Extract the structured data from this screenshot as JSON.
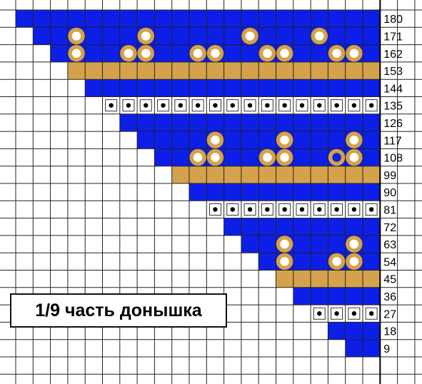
{
  "caption": "1/9 часть донышка",
  "row_labels": [
    "180",
    "171",
    "162",
    "153",
    "144",
    "135",
    "126",
    "117",
    "108",
    "99",
    "90",
    "81",
    "72",
    "63",
    "54",
    "45",
    "36",
    "27",
    "18",
    "9"
  ],
  "colors": {
    "blue": "#0d1fe6",
    "gold": "#d4a24c",
    "bead_white": "#ffffff",
    "dot": "#000000",
    "grid": "#222222",
    "blue_dot": "#0d1fe6"
  },
  "pattern": {
    "legend": {
      "B": "blue-bead",
      "G": "gold-bead",
      "C": "cluster-bead-white-with-gold-ring",
      "K": "blue-bead-in-gold-ring",
      "D": "white-bead-with-black-dot",
      "_": "empty"
    },
    "rows": [
      "BBBBBBBBBBBBBBBBBBBBB",
      "_BBCBBBCBBBBBCBBBCBBB",
      "__BCBBCCBBCCBBCCBBCCB",
      "___GGGGGGGGGGGGGGGGGG",
      "____BBBBBBBBBBBBBBBBB",
      "_____DDDDDDDDDDDDDDDD",
      "______BBBBBBBBBBBBBBB",
      "_______BBBBCBBBCBBBCB",
      "________BBCCBBCCBBKCB",
      "_________GGGGGGGGGGGG",
      "__________BBBBBBBBBBB",
      "___________DDDDDDDDDD",
      "____________BBBBBBBBB",
      "_____________BBCBBBCB",
      "______________BCBBCCB",
      "_______________GGGGGG",
      "________________BBBBB",
      "_________________DDDD",
      "__________________BBB",
      "___________________BB"
    ]
  }
}
